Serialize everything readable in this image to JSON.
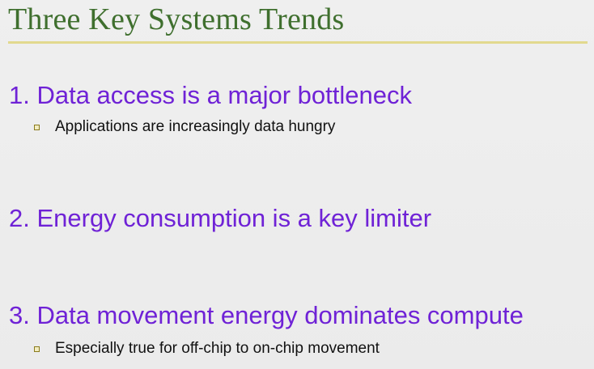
{
  "slide": {
    "title": "Three Key Systems Trends",
    "trends": [
      {
        "label": "1. Data access is a major bottleneck",
        "bullet": "Applications are increasingly data hungry"
      },
      {
        "label": "2. Energy consumption is a key limiter"
      },
      {
        "label": "3. Data movement energy dominates compute",
        "bullet": "Especially true for off-chip to on-chip movement"
      }
    ]
  },
  "colors": {
    "title": "#3f6f2e",
    "trend_text": "#6f22d6",
    "title_rule": "#e2d98e",
    "background": "#ececec"
  }
}
